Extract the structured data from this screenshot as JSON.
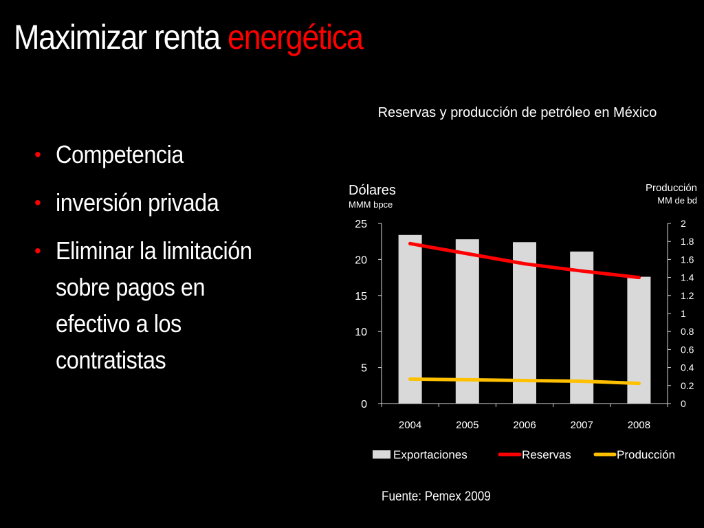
{
  "slide": {
    "title_part1": "Maximizar renta",
    "title_part2": "energética",
    "bullets": [
      "Competencia",
      "inversión privada",
      "Eliminar la limitación sobre pagos en efectivo a los contratistas"
    ],
    "source": "Fuente: Pemex 2009"
  },
  "colors": {
    "background": "#000000",
    "accent": "#ff0000",
    "bars": "#d9d9d9",
    "reservas": "#ff0000",
    "produccion": "#ffc000"
  },
  "chart_data": {
    "type": "bar",
    "title": "Reservas y producción de petróleo en México",
    "left_axis_label": "Dólares",
    "left_axis_sublabel": "MMM bpce",
    "right_axis_label": "Producción",
    "right_axis_sublabel": "MM de bd",
    "categories": [
      "2004",
      "2005",
      "2006",
      "2007",
      "2008"
    ],
    "ylim_left": [
      0,
      25
    ],
    "yticks_left": [
      "0",
      "5",
      "10",
      "15",
      "20",
      "25"
    ],
    "ylim_right": [
      0,
      2
    ],
    "yticks_right": [
      "0",
      "0.2",
      "0.4",
      "0.6",
      "0.8",
      "1",
      "1.2",
      "1.4",
      "1.6",
      "1.8",
      "2"
    ],
    "series": [
      {
        "name": "Exportaciones",
        "type": "bar",
        "axis": "left",
        "values": [
          23.4,
          22.8,
          22.4,
          21.1,
          17.6
        ]
      },
      {
        "name": "Reservas",
        "type": "line",
        "axis": "left",
        "values": [
          22.2,
          20.8,
          19.4,
          18.4,
          17.5
        ]
      },
      {
        "name": "Producción",
        "type": "line",
        "axis": "left",
        "values": [
          3.4,
          3.3,
          3.2,
          3.1,
          2.8
        ]
      }
    ],
    "legend_position": "bottom",
    "grid": false
  }
}
